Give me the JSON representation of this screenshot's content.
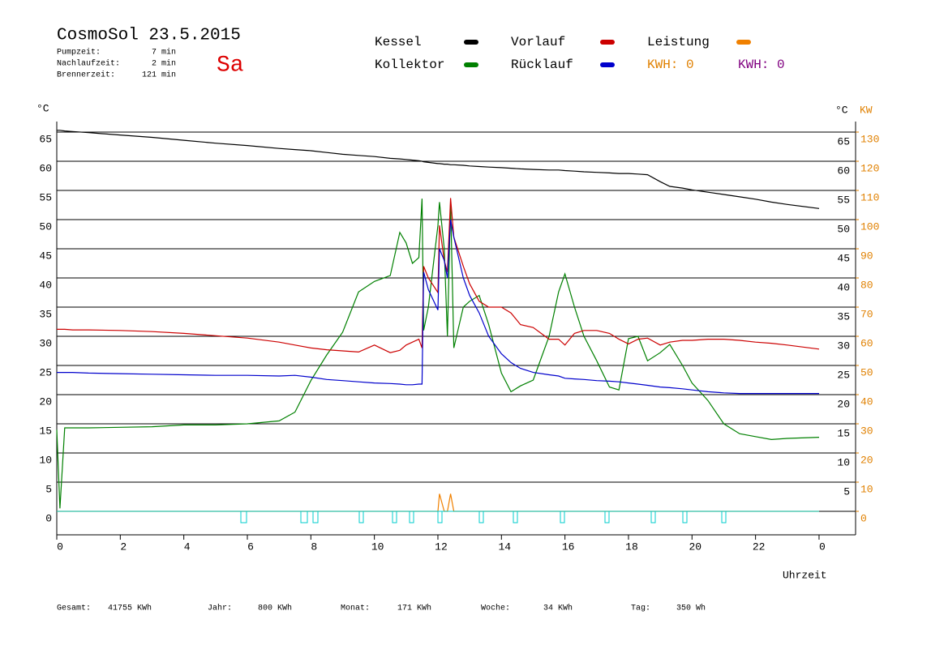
{
  "header": {
    "title": "CosmoSol 23.5.2015",
    "day": "Sa",
    "stats": [
      {
        "label": "Pumpzeit:",
        "value": "7 min"
      },
      {
        "label": "Nachlaufzeit:",
        "value": "2 min"
      },
      {
        "label": "Brennerzeit:",
        "value": "121 min"
      }
    ]
  },
  "legend_extra": [
    {
      "text": "KWH: 0",
      "color": "#e08000"
    },
    {
      "text": "KWH: 0",
      "color": "#800080"
    }
  ],
  "footer": [
    {
      "label": "Gesamt:",
      "value": "41755 KWh"
    },
    {
      "label": "Jahr:",
      "value": "800 KWh"
    },
    {
      "label": "Monat:",
      "value": "171 KWh"
    },
    {
      "label": "Woche:",
      "value": "34 KWh"
    },
    {
      "label": "Tag:",
      "value": "350 Wh"
    }
  ],
  "chart_data": {
    "type": "line",
    "ylabel": "°C",
    "ylabel_right": "°C",
    "y2label": "KW",
    "xlabel": "Uhrzeit",
    "xlim": [
      0,
      25.15
    ],
    "xticks": [
      0,
      2,
      4,
      6,
      8,
      10,
      12,
      14,
      16,
      18,
      20,
      22,
      {
        "value": 24,
        "label": "0"
      }
    ],
    "ylim": [
      -4,
      65
    ],
    "yticks": [
      0,
      5,
      10,
      15,
      20,
      25,
      30,
      35,
      40,
      45,
      50,
      55,
      60,
      65
    ],
    "yticks_right": [
      5,
      10,
      15,
      20,
      25,
      30,
      35,
      40,
      45,
      50,
      55,
      60,
      65
    ],
    "y2lim": [
      -8,
      130
    ],
    "y2ticks": [
      0,
      10,
      20,
      30,
      40,
      50,
      60,
      70,
      80,
      90,
      100,
      110,
      120,
      130
    ],
    "grid": true,
    "x": [
      0,
      0.1,
      0.25,
      0.5,
      1,
      2,
      3,
      4,
      5,
      6,
      7,
      7.5,
      8,
      8.5,
      9,
      9.5,
      10,
      10.5,
      10.8,
      11,
      11.2,
      11.4,
      11.5,
      11.55,
      11.7,
      12,
      12.05,
      12.2,
      12.3,
      12.4,
      12.5,
      12.8,
      13,
      13.3,
      13.6,
      14,
      14.3,
      14.6,
      15,
      15.5,
      15.8,
      16,
      16.3,
      16.6,
      17,
      17.4,
      17.7,
      18,
      18.3,
      18.6,
      19,
      19.3,
      19.7,
      20,
      20.5,
      21,
      21.5,
      22,
      22.5,
      23,
      24
    ],
    "series": [
      {
        "name": "Kessel",
        "color": "#000000",
        "values": [
          65.3,
          65.3,
          65.2,
          65.1,
          64.9,
          64.5,
          64.1,
          63.6,
          63.1,
          62.7,
          62.2,
          62.0,
          61.8,
          61.5,
          61.2,
          61.0,
          60.8,
          60.5,
          60.4,
          60.3,
          60.2,
          60.1,
          60.0,
          59.9,
          59.8,
          59.6,
          59.6,
          59.5,
          59.5,
          59.4,
          59.4,
          59.3,
          59.2,
          59.1,
          59.0,
          58.9,
          58.8,
          58.7,
          58.6,
          58.5,
          58.5,
          58.4,
          58.3,
          58.2,
          58.1,
          58.0,
          57.9,
          57.9,
          57.8,
          57.7,
          56.5,
          55.7,
          55.4,
          55.1,
          54.7,
          54.3,
          53.9,
          53.5,
          53.0,
          52.6,
          51.9
        ]
      },
      {
        "name": "Kollektor",
        "color": "#008000",
        "values": [
          14,
          0.5,
          14.3,
          14.3,
          14.3,
          14.4,
          14.5,
          14.8,
          14.8,
          15,
          15.5,
          17,
          22.4,
          26.8,
          30.7,
          37.6,
          39.4,
          40.4,
          47.8,
          46,
          42.5,
          43.5,
          53.6,
          31,
          35,
          49,
          53,
          45,
          30,
          53,
          28,
          35,
          36,
          37,
          32,
          23.7,
          20.5,
          21.5,
          22.5,
          30,
          37.6,
          40.7,
          35,
          30,
          25.8,
          21.3,
          20.8,
          29.6,
          30,
          25.8,
          27.2,
          28.6,
          25,
          22,
          19,
          15,
          13.3,
          12.8,
          12.3,
          12.5,
          12.7
        ]
      },
      {
        "name": "Vorlauf",
        "color": "#cc0000",
        "values": [
          31.2,
          31.2,
          31.2,
          31.1,
          31.1,
          31,
          30.8,
          30.5,
          30.1,
          29.7,
          29,
          28.5,
          28,
          27.7,
          27.5,
          27.3,
          28.5,
          27.2,
          27.6,
          28.5,
          29,
          29.5,
          28,
          42,
          40,
          37.5,
          49,
          43,
          41,
          53.7,
          47,
          42,
          39,
          36,
          35,
          35,
          34,
          32,
          31.5,
          29.5,
          29.5,
          28.5,
          30.5,
          31,
          31,
          30.5,
          29.5,
          28.7,
          29.5,
          29.7,
          28.5,
          29,
          29.3,
          29.3,
          29.5,
          29.5,
          29.3,
          29,
          28.8,
          28.5,
          27.8
        ]
      },
      {
        "name": "Rücklauf",
        "color": "#0000cc",
        "values": [
          23.8,
          23.8,
          23.8,
          23.8,
          23.7,
          23.6,
          23.5,
          23.4,
          23.3,
          23.3,
          23.2,
          23.3,
          23,
          22.6,
          22.4,
          22.2,
          22,
          21.9,
          21.8,
          21.7,
          21.7,
          21.8,
          21.8,
          41,
          38,
          34.5,
          45,
          43,
          40,
          50,
          47,
          40,
          37,
          34,
          30,
          27,
          25.5,
          24.5,
          23.8,
          23.4,
          23.2,
          22.8,
          22.7,
          22.6,
          22.4,
          22.3,
          22.2,
          22,
          21.8,
          21.6,
          21.3,
          21.2,
          21,
          20.8,
          20.5,
          20.3,
          20.2,
          20.2,
          20.2,
          20.2,
          20.2
        ]
      },
      {
        "name": "Leistung",
        "color": "#f08000",
        "axis": "y2",
        "values": [
          0,
          0,
          0,
          0,
          0,
          0,
          0,
          0,
          0,
          0,
          0,
          0,
          0,
          0,
          0,
          0,
          0,
          0,
          0,
          0,
          0,
          0,
          0,
          0,
          0,
          0,
          6,
          0,
          0,
          6,
          0,
          0,
          0,
          0,
          0,
          0,
          0,
          0,
          0,
          0,
          0,
          0,
          0,
          0,
          0,
          0,
          0,
          0,
          0,
          0,
          0,
          0,
          0,
          0,
          0,
          0,
          0,
          0,
          0,
          0,
          0
        ]
      }
    ]
  }
}
